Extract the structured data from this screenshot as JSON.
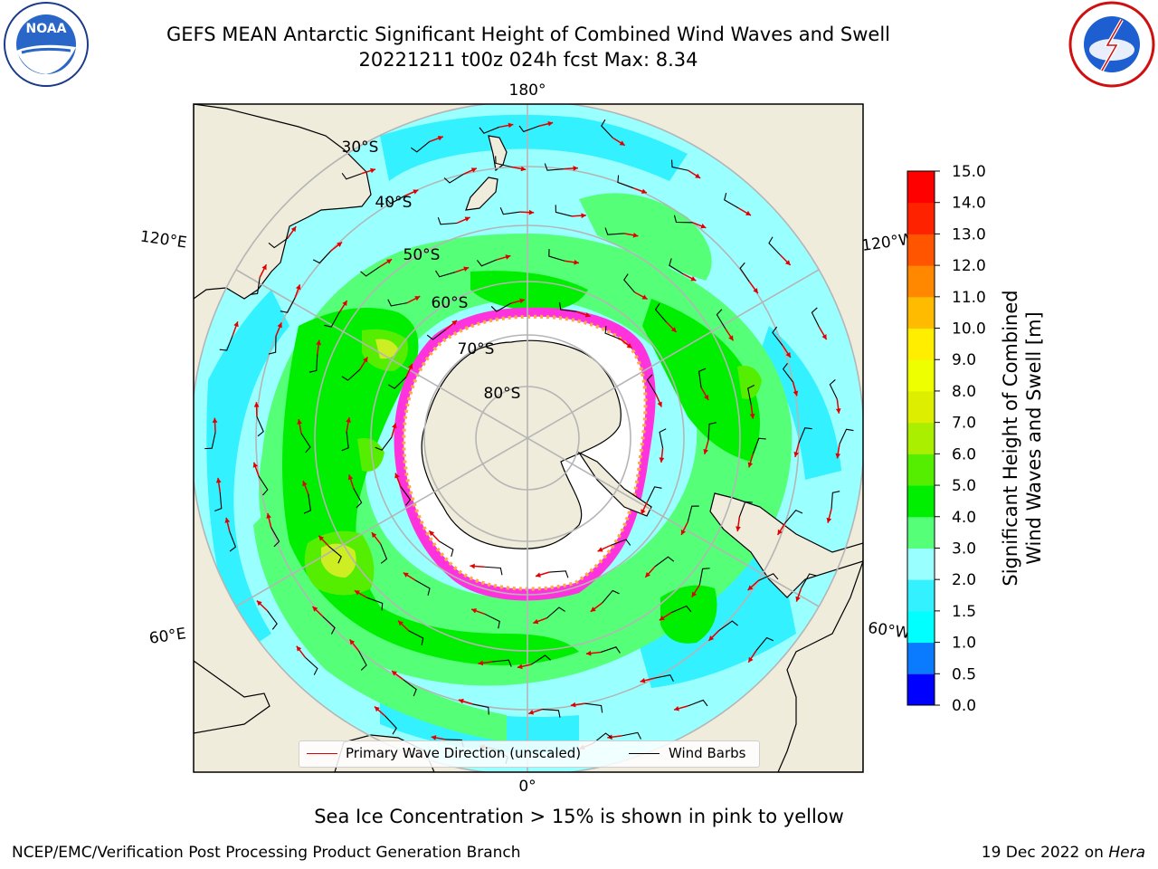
{
  "header": {
    "title_line1": "GEFS MEAN Antarctic Significant Height of Combined Wind Waves and Swell",
    "title_line2": "20221211 t00z 024h fcst   Max: 8.34"
  },
  "logos": {
    "left": {
      "name": "NOAA",
      "ring_text": "NATIONAL OCEANIC AND ATMOSPHERIC ADMINISTRATION",
      "bottom_text": "U.S. DEPARTMENT OF COMMERCE"
    },
    "right": {
      "ring_text": "NATIONAL WEATHER SERVICE"
    }
  },
  "map": {
    "projection": "south polar stereographic",
    "longitude_labels": {
      "top": "180°",
      "bottom": "0°",
      "left_upper": "120°E",
      "left_lower": "60°E",
      "right_upper": "120°W",
      "right_lower": "60°W"
    },
    "latitude_labels": [
      "30°S",
      "40°S",
      "50°S",
      "60°S",
      "70°S",
      "80°S"
    ],
    "colors": {
      "land": "#efecdc",
      "ice_edge": "#ff33dd",
      "arrow": "#e00000",
      "barb": "#000000",
      "grid": "#b5b5b5"
    }
  },
  "legend": {
    "primary_wave_direction": "Primary Wave Direction (unscaled)",
    "wind_barbs": "Wind Barbs"
  },
  "colorbar": {
    "label_line1": "Significant Height of Combined",
    "label_line2": "Wind Waves and Swell [m]",
    "ticks": [
      "0.0",
      "0.5",
      "1.0",
      "1.5",
      "2.0",
      "3.0",
      "4.0",
      "5.0",
      "6.0",
      "7.0",
      "8.0",
      "9.0",
      "10.0",
      "11.0",
      "12.0",
      "13.0",
      "14.0",
      "15.0"
    ],
    "colors": [
      "#0000ff",
      "#0a7bff",
      "#00ffff",
      "#33f1ff",
      "#99ffff",
      "#55ff77",
      "#00ee00",
      "#55ee00",
      "#aaee00",
      "#ddee00",
      "#eeff00",
      "#ffee00",
      "#ffbb00",
      "#ff8800",
      "#ff5500",
      "#ff2200",
      "#ff0000"
    ]
  },
  "footer": {
    "caption": "Sea Ice Concentration > 15% is shown in pink to yellow",
    "left": "NCEP/EMC/Verification Post Processing Product Generation Branch",
    "right_prefix": "19 Dec 2022 on ",
    "right_host": "Hera"
  }
}
